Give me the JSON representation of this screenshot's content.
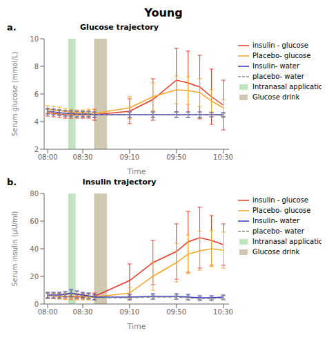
{
  "title": "Young",
  "chart_data": [
    {
      "type": "line",
      "title": "Glucose trajectory",
      "annotations": [
        "a."
      ],
      "x_label": "Time",
      "y_label": "Serum glucose (mmol/L)",
      "x": [
        0,
        5,
        10,
        15,
        20,
        25,
        30,
        35,
        40,
        70,
        90,
        110,
        120,
        130,
        140,
        150
      ],
      "xlim": [
        -3,
        155
      ],
      "xticks": [
        {
          "value": 0,
          "label": "08:00"
        },
        {
          "value": 30,
          "label": "08:30"
        },
        {
          "value": 70,
          "label": "09:10"
        },
        {
          "value": 110,
          "label": "09:50"
        },
        {
          "value": 150,
          "label": "10:30"
        }
      ],
      "ylim": [
        2,
        10
      ],
      "yticks": [
        2,
        4,
        6,
        8,
        10
      ],
      "grid": false,
      "legend": "right",
      "series": [
        {
          "name": "insulin - glucose",
          "color": "#e8392a",
          "line_style": "solid",
          "values": [
            4.65,
            4.6,
            4.55,
            4.5,
            4.5,
            4.5,
            4.5,
            4.5,
            4.5,
            4.75,
            5.6,
            7.0,
            6.8,
            6.5,
            5.8,
            5.2
          ],
          "errors": [
            0.25,
            0.25,
            0.25,
            0.25,
            0.25,
            0.25,
            0.25,
            0.25,
            0.4,
            0.9,
            1.5,
            2.3,
            2.3,
            2.3,
            2.0,
            1.8
          ]
        },
        {
          "name": "Placebo- glucose",
          "color": "#f5a623",
          "line_style": "solid",
          "values": [
            4.9,
            4.85,
            4.8,
            4.75,
            4.7,
            4.65,
            4.65,
            4.65,
            4.6,
            5.0,
            5.8,
            6.3,
            6.25,
            6.1,
            5.5,
            5.0
          ],
          "errors": [
            0.25,
            0.25,
            0.25,
            0.2,
            0.2,
            0.2,
            0.2,
            0.25,
            0.3,
            0.8,
            1.0,
            1.0,
            1.0,
            1.0,
            0.8,
            0.6
          ]
        },
        {
          "name": "Insulin- water",
          "color": "#3333cc",
          "line_style": "solid",
          "values": [
            4.75,
            4.7,
            4.65,
            4.6,
            4.6,
            4.55,
            4.55,
            4.55,
            4.5,
            4.5,
            4.5,
            4.5,
            4.5,
            4.5,
            4.5,
            4.5
          ],
          "errors": [
            0.2,
            0.2,
            0.2,
            0.2,
            0.2,
            0.2,
            0.2,
            0.2,
            0.2,
            0.2,
            0.2,
            0.2,
            0.2,
            0.2,
            0.15,
            0.15
          ]
        },
        {
          "name": "placebo- water",
          "color": "#888888",
          "line_style": "dashed",
          "values": [
            4.75,
            4.7,
            4.65,
            4.6,
            4.6,
            4.55,
            4.55,
            4.55,
            4.5,
            4.5,
            4.5,
            4.5,
            4.5,
            4.5,
            4.5,
            4.45
          ],
          "errors": [
            0.2,
            0.2,
            0.2,
            0.2,
            0.2,
            0.2,
            0.2,
            0.2,
            0.2,
            0.2,
            0.2,
            0.2,
            0.2,
            0.2,
            0.15,
            0.15
          ]
        }
      ],
      "spans": [
        {
          "name": "Intranasal application",
          "color": "#4caf50",
          "x": [
            17.54,
            23.86
          ]
        },
        {
          "name": "Glucose drink",
          "color": "#7a6020",
          "x": [
            39.66,
            50.72
          ]
        }
      ]
    },
    {
      "type": "line",
      "title": "Insulin trajectory",
      "annotations": [
        "b."
      ],
      "x_label": "Time",
      "y_label": "Serum insulin (μU/ml)",
      "x": [
        0,
        5,
        10,
        15,
        20,
        25,
        30,
        35,
        40,
        70,
        90,
        110,
        120,
        130,
        140,
        150
      ],
      "xlim": [
        -3,
        155
      ],
      "xticks": [
        {
          "value": 0,
          "label": "08:00"
        },
        {
          "value": 30,
          "label": "08:30"
        },
        {
          "value": 70,
          "label": "09:10"
        },
        {
          "value": 110,
          "label": "09:50"
        },
        {
          "value": 150,
          "label": "10:30"
        }
      ],
      "ylim": [
        0,
        80
      ],
      "yticks": [
        0,
        20,
        40,
        60,
        80
      ],
      "grid": false,
      "legend": "right",
      "series": [
        {
          "name": "insulin - glucose",
          "color": "#e8392a",
          "line_style": "solid",
          "values": [
            6.0,
            5.8,
            5.8,
            5.5,
            5.5,
            5.5,
            5.5,
            5.5,
            5.5,
            17.0,
            30.0,
            38.0,
            45.0,
            48.0,
            46.0,
            43.0
          ],
          "errors": [
            2.0,
            2.0,
            2.0,
            2.0,
            2.0,
            2.0,
            2.0,
            2.0,
            2.5,
            12.0,
            16.0,
            20.0,
            22.0,
            22.0,
            18.0,
            15.0
          ]
        },
        {
          "name": "Placebo- glucose",
          "color": "#f5a623",
          "line_style": "solid",
          "values": [
            6.0,
            5.8,
            5.5,
            5.5,
            5.0,
            5.0,
            5.0,
            5.0,
            5.0,
            8.0,
            20.0,
            30.0,
            36.0,
            38.5,
            40.0,
            39.0
          ],
          "errors": [
            2.0,
            2.0,
            2.0,
            2.0,
            2.0,
            2.0,
            2.0,
            2.0,
            2.0,
            4.0,
            10.0,
            14.0,
            14.0,
            14.0,
            13.0,
            13.0
          ]
        },
        {
          "name": "Insulin- water",
          "color": "#3333cc",
          "line_style": "solid",
          "values": [
            6.5,
            6.5,
            6.5,
            7.0,
            8.0,
            7.0,
            6.5,
            6.0,
            5.0,
            5.0,
            5.5,
            5.5,
            5.0,
            4.5,
            4.5,
            5.0
          ],
          "errors": [
            2.0,
            2.0,
            2.0,
            2.0,
            2.5,
            2.5,
            2.0,
            2.0,
            2.0,
            2.0,
            2.0,
            2.0,
            2.0,
            1.5,
            1.5,
            1.5
          ]
        },
        {
          "name": "placebo- water",
          "color": "#888888",
          "line_style": "dashed",
          "values": [
            6.0,
            6.0,
            6.0,
            6.5,
            7.5,
            6.5,
            6.0,
            5.5,
            4.5,
            4.5,
            5.0,
            5.0,
            4.5,
            4.0,
            4.0,
            4.5
          ],
          "errors": [
            2.0,
            2.0,
            2.0,
            2.0,
            2.5,
            2.5,
            2.0,
            2.0,
            1.5,
            1.5,
            1.5,
            1.5,
            1.5,
            1.5,
            1.5,
            1.5
          ]
        }
      ],
      "spans": [
        {
          "name": "Intranasal application",
          "color": "#4caf50",
          "x": [
            17.54,
            23.86
          ]
        },
        {
          "name": "Glucose drink",
          "color": "#7a6020",
          "x": [
            39.66,
            50.72
          ]
        }
      ]
    }
  ]
}
